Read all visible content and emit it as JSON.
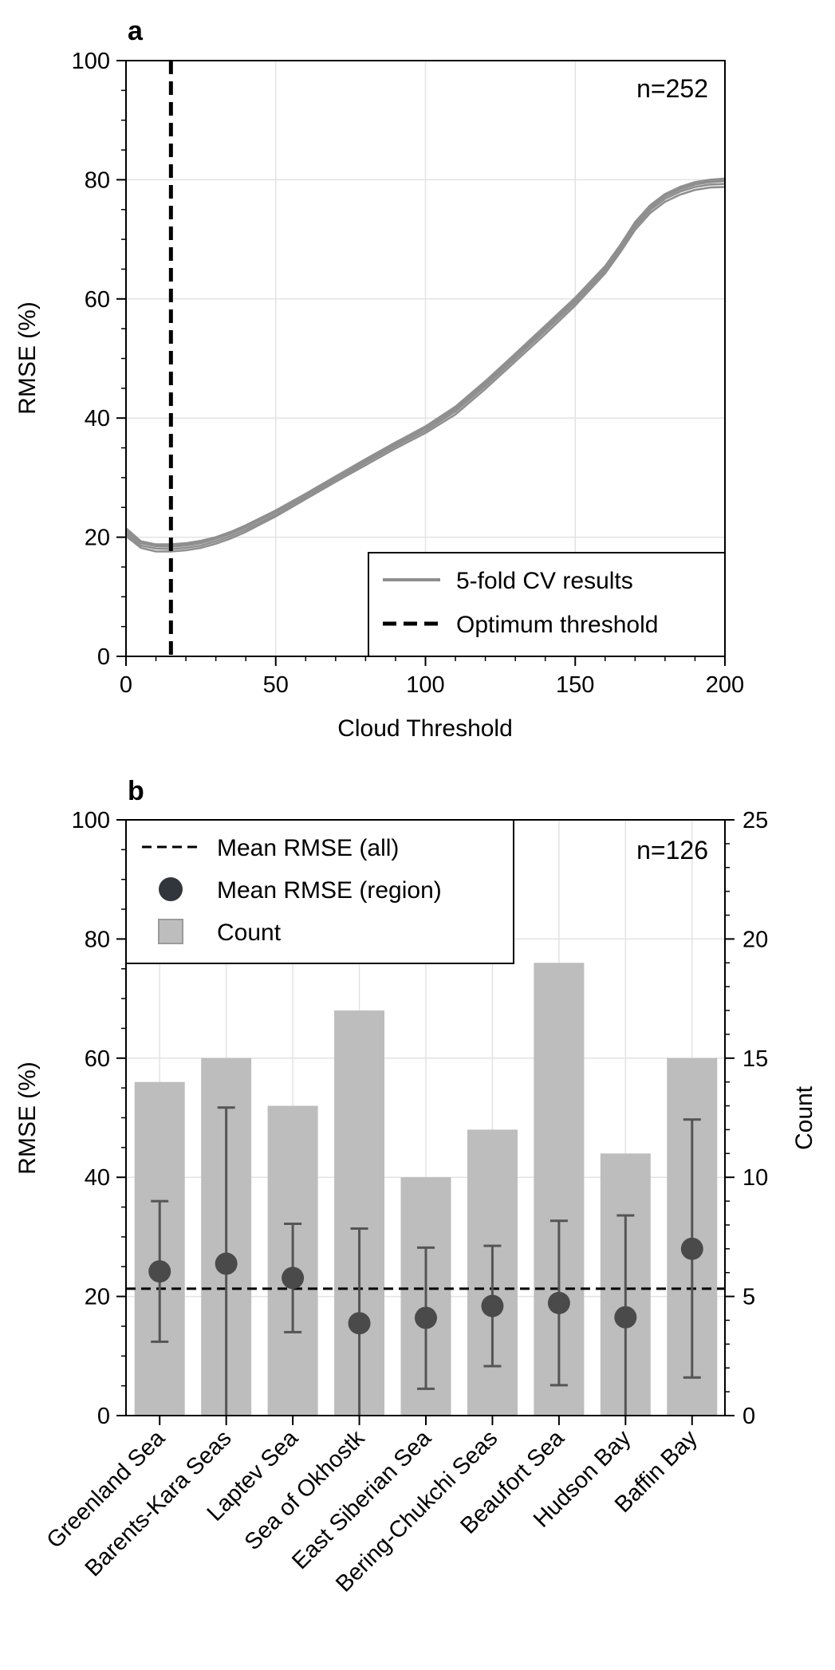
{
  "colors": {
    "cv_line": "#8f8f8f",
    "bar": "#bdbdbd",
    "dot": "#4a4a4a",
    "error": "#555555",
    "grid": "#e3e3e3",
    "legend_dot": "#31363d"
  },
  "chart_data": [
    {
      "type": "line",
      "panel_label": "a",
      "annotation": "n=252",
      "xlabel": "Cloud Threshold",
      "ylabel": "RMSE (%)",
      "xlim": [
        0,
        200
      ],
      "ylim": [
        0,
        100
      ],
      "xticks": [
        0,
        50,
        100,
        150,
        200
      ],
      "yticks": [
        0,
        20,
        40,
        60,
        80,
        100
      ],
      "grid": true,
      "legend_position": "lower-right",
      "legend": [
        "5-fold CV results",
        "Optimum threshold"
      ],
      "optimum_threshold": 15,
      "x": [
        0,
        5,
        10,
        15,
        20,
        25,
        30,
        35,
        40,
        50,
        60,
        70,
        80,
        90,
        100,
        110,
        120,
        130,
        140,
        150,
        160,
        165,
        170,
        175,
        180,
        185,
        190,
        195,
        200
      ],
      "series": [
        {
          "values": [
            21.5,
            19.3,
            18.8,
            18.8,
            19.0,
            19.4,
            20.0,
            20.9,
            22.0,
            24.5,
            27.3,
            30.2,
            33.1,
            35.9,
            38.6,
            41.9,
            46.2,
            50.8,
            55.5,
            60.2,
            65.5,
            69.0,
            72.9,
            75.7,
            77.6,
            78.8,
            79.6,
            80.0,
            80.2
          ]
        },
        {
          "values": [
            21.0,
            19.0,
            18.5,
            18.4,
            18.6,
            19.0,
            19.7,
            20.6,
            21.7,
            24.2,
            27.0,
            29.9,
            32.8,
            35.6,
            38.3,
            41.5,
            45.8,
            50.4,
            55.0,
            59.8,
            65.1,
            68.6,
            72.5,
            75.3,
            77.2,
            78.4,
            79.2,
            79.6,
            79.8
          ]
        },
        {
          "values": [
            20.6,
            18.6,
            18.1,
            18.0,
            18.2,
            18.6,
            19.3,
            20.2,
            21.3,
            23.8,
            26.7,
            29.6,
            32.5,
            35.3,
            37.9,
            41.1,
            45.4,
            50.0,
            54.6,
            59.4,
            64.7,
            68.2,
            72.1,
            74.9,
            76.8,
            78.0,
            78.8,
            79.2,
            79.3
          ]
        },
        {
          "values": [
            20.2,
            18.2,
            17.6,
            17.6,
            17.8,
            18.2,
            18.9,
            19.8,
            20.9,
            23.5,
            26.4,
            29.3,
            32.1,
            34.9,
            37.5,
            40.6,
            44.9,
            49.5,
            54.1,
            58.9,
            64.3,
            67.8,
            71.6,
            74.4,
            76.3,
            77.5,
            78.3,
            78.7,
            78.8
          ]
        },
        {
          "values": [
            21.2,
            19.1,
            18.6,
            18.6,
            18.8,
            19.2,
            19.9,
            20.7,
            21.8,
            24.3,
            27.1,
            30.0,
            32.9,
            35.7,
            38.4,
            41.7,
            46.0,
            50.6,
            55.2,
            60.0,
            65.3,
            68.8,
            72.7,
            75.5,
            77.4,
            78.6,
            79.4,
            79.8,
            80.0
          ]
        }
      ]
    },
    {
      "type": "bar",
      "panel_label": "b",
      "annotation": "n=126",
      "ylabel": "RMSE (%)",
      "y2label": "Count",
      "ylim": [
        0,
        100
      ],
      "y2lim": [
        0,
        25
      ],
      "yticks": [
        0,
        20,
        40,
        60,
        80,
        100
      ],
      "y2ticks": [
        0,
        5,
        10,
        15,
        20,
        25
      ],
      "grid": true,
      "legend_position": "upper-left",
      "legend": [
        "Mean RMSE (all)",
        "Mean RMSE (region)",
        "Count"
      ],
      "mean_rmse_all": 21.3,
      "categories": [
        "Greenland Sea",
        "Barents-Kara Seas",
        "Laptev Sea",
        "Sea of Okhostk",
        "East Siberian Sea",
        "Bering-Chukchi Seas",
        "Beaufort Sea",
        "Hudson Bay",
        "Baffin Bay"
      ],
      "count": [
        14,
        15,
        13,
        17,
        10,
        12,
        19,
        11,
        15
      ],
      "mean_rmse": [
        24.2,
        25.5,
        23.1,
        15.5,
        16.4,
        18.4,
        18.9,
        16.5,
        28.0
      ],
      "error_low": [
        12.4,
        0,
        14.0,
        0,
        4.5,
        8.3,
        5.1,
        0,
        6.4
      ],
      "error_high": [
        36.0,
        51.7,
        32.2,
        31.4,
        28.2,
        28.5,
        32.7,
        33.6,
        49.7
      ]
    }
  ]
}
